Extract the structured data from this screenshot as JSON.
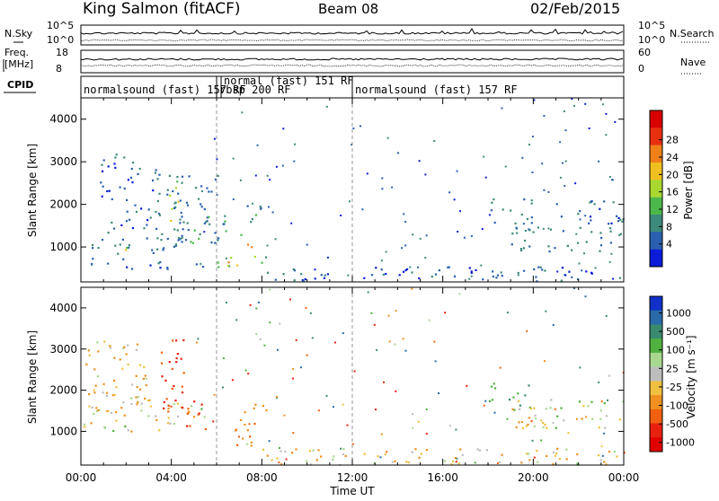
{
  "header": {
    "station": "King Salmon (fitACF)",
    "beam": "Beam 08",
    "date": "02/Feb/2015"
  },
  "strips": {
    "left_top_label": "N.Sky",
    "left_mid_label_1": "Freq.",
    "left_mid_label_2": "[MHz]",
    "left_bot_label": "CPID",
    "right_top_label": "N.Search",
    "right_mid_label": "Nave",
    "nsky_ticks": [
      "10^5",
      "10^0"
    ],
    "nsearch_ticks": [
      "10^5",
      "10^0"
    ],
    "freq_ticks": [
      "18",
      "8"
    ],
    "nave_ticks": [
      "60",
      "0"
    ]
  },
  "cpid_segments": [
    {
      "label": "normalsound (fast) 157 RF",
      "start_h": 0,
      "end_h": 6
    },
    {
      "label": "rbsp 200 RF",
      "start_h": 6,
      "end_h": 6.2
    },
    {
      "label": "normal (fast) 151 RF",
      "start_h": 6.2,
      "end_h": 12
    },
    {
      "label": "normalsound (fast) 157 RF",
      "start_h": 12,
      "end_h": 24
    }
  ],
  "chart_data": [
    {
      "type": "heatmap",
      "title": "",
      "xlabel": "Time UT",
      "ylabel": "Slant Range [km]",
      "x_ticks": [
        "00:00",
        "04:00",
        "08:00",
        "12:00",
        "16:00",
        "20:00",
        "00:00"
      ],
      "xlim_hours": [
        0,
        24
      ],
      "y_ticks": [
        1000,
        2000,
        3000,
        4000
      ],
      "ylim": [
        180,
        4500
      ],
      "colorbar": {
        "label": "Power [dB]",
        "ticks": [
          4,
          8,
          12,
          16,
          20,
          24,
          28
        ],
        "colors": [
          "#0a1cd8",
          "#2a5fb0",
          "#3c8a7a",
          "#4cb84c",
          "#a8d830",
          "#f0c020",
          "#f08018",
          "#e83010",
          "#d80000"
        ]
      },
      "regions": [
        {
          "t0": 0.1,
          "t1": 4.6,
          "r0": 850,
          "r1": 1250,
          "level": 8
        },
        {
          "t0": 0.8,
          "t1": 3.5,
          "r0": 1300,
          "r1": 3200,
          "level": 6
        },
        {
          "t0": 3.3,
          "t1": 6.3,
          "r0": 1000,
          "r1": 2700,
          "level": 8
        },
        {
          "t0": 4.2,
          "t1": 6.4,
          "r0": 1100,
          "r1": 1800,
          "level": 10
        },
        {
          "t0": 0.1,
          "t1": 2.0,
          "r0": 1000,
          "r1": 1150,
          "level": 14
        },
        {
          "t0": 1.6,
          "t1": 2.6,
          "r0": 950,
          "r1": 1100,
          "level": 18
        },
        {
          "t0": 3.8,
          "t1": 4.3,
          "r0": 1500,
          "r1": 2600,
          "level": 18
        },
        {
          "t0": 0.2,
          "t1": 6.0,
          "r0": 500,
          "r1": 750,
          "level": 6
        },
        {
          "t0": 6.0,
          "t1": 8.3,
          "r0": 450,
          "r1": 800,
          "level": 14
        },
        {
          "t0": 6.3,
          "t1": 7.0,
          "r0": 550,
          "r1": 750,
          "level": 22
        },
        {
          "t0": 7.0,
          "t1": 7.6,
          "r0": 950,
          "r1": 1200,
          "level": 26
        },
        {
          "t0": 7.0,
          "t1": 8.0,
          "r0": 1200,
          "r1": 2100,
          "level": 10
        },
        {
          "t0": 8.0,
          "t1": 24.0,
          "r0": 200,
          "r1": 550,
          "level": 6
        },
        {
          "t0": 17.8,
          "t1": 20.0,
          "r0": 1300,
          "r1": 2200,
          "level": 8
        },
        {
          "t0": 19.0,
          "t1": 24.0,
          "r0": 900,
          "r1": 1500,
          "level": 8
        },
        {
          "t0": 21.0,
          "t1": 24.0,
          "r0": 1500,
          "r1": 2100,
          "level": 6
        }
      ]
    },
    {
      "type": "heatmap",
      "title": "",
      "xlabel": "Time UT",
      "ylabel": "Slant Range [km]",
      "x_ticks": [
        "00:00",
        "04:00",
        "08:00",
        "12:00",
        "16:00",
        "20:00",
        "00:00"
      ],
      "xlim_hours": [
        0,
        24
      ],
      "y_ticks": [
        1000,
        2000,
        3000,
        4000
      ],
      "ylim": [
        180,
        4500
      ],
      "colorbar": {
        "label": "Velocity [m s⁻¹]",
        "ticks": [
          "1000",
          "500",
          "100",
          "25",
          "-25",
          "-100",
          "-500",
          "-1000"
        ],
        "colors": [
          "#1030c8",
          "#2a6aa8",
          "#3a8a70",
          "#50b040",
          "#a8d890",
          "#bdbdbd",
          "#f0c040",
          "#f09020",
          "#f06010",
          "#e82010",
          "#e00000"
        ]
      },
      "regions": [
        {
          "t0": 0.1,
          "t1": 3.5,
          "r0": 1000,
          "r1": 1300,
          "level": 0
        },
        {
          "t0": 2.0,
          "t1": 5.5,
          "r0": 1200,
          "r1": 1700,
          "level": 0
        },
        {
          "t0": 0.2,
          "t1": 3.0,
          "r0": 1400,
          "r1": 3300,
          "level": -60
        },
        {
          "t0": 3.5,
          "t1": 4.6,
          "r0": 1500,
          "r1": 3300,
          "level": -500
        },
        {
          "t0": 4.5,
          "t1": 5.5,
          "r0": 1000,
          "r1": 1800,
          "level": -500
        },
        {
          "t0": 6.0,
          "t1": 7.5,
          "r0": 550,
          "r1": 800,
          "level": -200
        },
        {
          "t0": 6.8,
          "t1": 8.2,
          "r0": 800,
          "r1": 1700,
          "level": -300
        },
        {
          "t0": 8.0,
          "t1": 24.0,
          "r0": 200,
          "r1": 600,
          "level": -60
        },
        {
          "t0": 18.0,
          "t1": 20.0,
          "r0": 1500,
          "r1": 2200,
          "level": 300
        },
        {
          "t0": 19.0,
          "t1": 24.0,
          "r0": 1100,
          "r1": 1800,
          "level": 0
        },
        {
          "t0": 19.2,
          "t1": 20.0,
          "r0": 1000,
          "r1": 1300,
          "level": -300
        }
      ]
    }
  ]
}
